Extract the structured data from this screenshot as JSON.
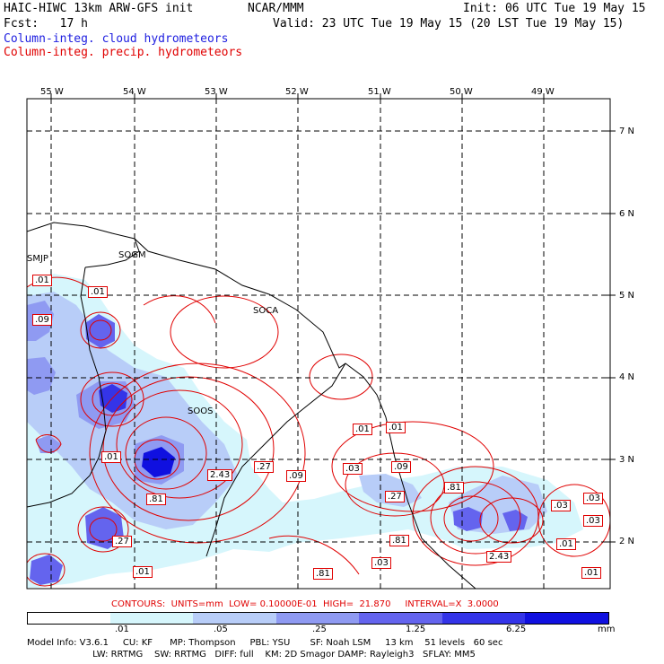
{
  "header": {
    "model": "HAIC-HIWC 13km ARW-GFS init",
    "org": "NCAR/MMM",
    "init": "Init: 06 UTC Tue 19 May 15",
    "fcst": "Fcst:   17 h",
    "valid": "Valid: 23 UTC Tue 19 May 15 (20 LST Tue 19 May 15)",
    "field_cloud": "Column-integ. cloud hydrometeors",
    "field_precip": "Column-integ. precip. hydrometeors"
  },
  "axes": {
    "lon_labels": [
      "55 W",
      "54 W",
      "53 W",
      "52 W",
      "51 W",
      "50 W",
      "49 W"
    ],
    "lat_labels": [
      "7 N",
      "6 N",
      "5 N",
      "4 N",
      "3 N",
      "2 N"
    ]
  },
  "stations": [
    "SMJP",
    "SOGM",
    "SOCA",
    "SOOS"
  ],
  "contour_labels": [
    ".01",
    ".01",
    ".09",
    ".01",
    "2.43",
    ".27",
    ".09",
    ".03",
    ".09",
    ".27",
    ".81",
    ".01",
    ".01",
    ".81",
    ".27",
    ".03",
    ".81",
    ".01",
    ".81",
    ".03",
    ".03",
    ".01",
    "2.43",
    ".03",
    ".01",
    ".01"
  ],
  "contour_info": "CONTOURS:  UNITS=mm  LOW= 0.10000E-01  HIGH=  21.870     INTERVAL=X  3.0000",
  "colorbar": {
    "labels": [
      ".01",
      ".05",
      ".25",
      "1.25",
      "6.25",
      "mm"
    ],
    "colors": [
      "#ffffff",
      "#d6f6fc",
      "#b8cdf8",
      "#8f9af2",
      "#6464ee",
      "#3434e8",
      "#1010e0"
    ]
  },
  "model_info": {
    "line1": "Model Info: V3.6.1     CU: KF      MP: Thompson     PBL: YSU       SF: Noah LSM     13 km    51 levels   60 sec",
    "line2": "                       LW: RRTMG    SW: RRTMG   DIFF: full    KM: 2D Smagor DAMP: Rayleigh3   SFLAY: MM5"
  }
}
